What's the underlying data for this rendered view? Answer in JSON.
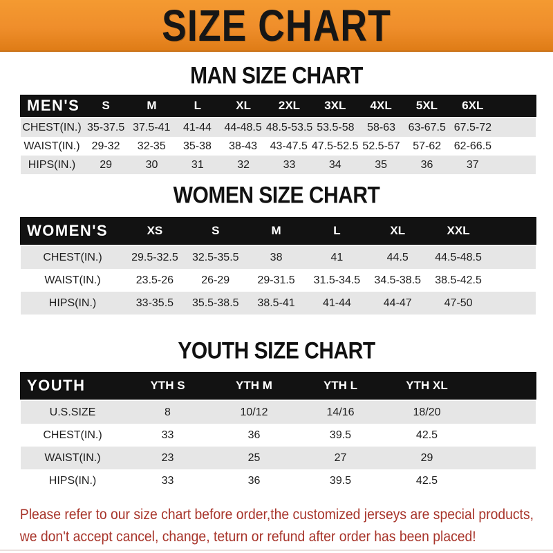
{
  "banner": {
    "title": "SIZE CHART"
  },
  "colors": {
    "banner_bg": "#EF8E2B",
    "banner_hi": "#F49A31",
    "bar_bg": "#121212",
    "bar_text": "#FFFFFF",
    "row_alt": "#E6E6E6",
    "title_text": "#111111",
    "footer_text": "#A8352B"
  },
  "chart_data": [
    {
      "type": "table",
      "title": "MAN SIZE CHART",
      "header_label": "MEN'S",
      "columns": [
        "S",
        "M",
        "L",
        "XL",
        "2XL",
        "3XL",
        "4XL",
        "5XL",
        "6XL"
      ],
      "rows": [
        [
          "CHEST(IN.)",
          "35-37.5",
          "37.5-41",
          "41-44",
          "44-48.5",
          "48.5-53.5",
          "53.5-58",
          "58-63",
          "63-67.5",
          "67.5-72"
        ],
        [
          "WAIST(IN.)",
          "29-32",
          "32-35",
          "35-38",
          "38-43",
          "43-47.5",
          "47.5-52.5",
          "52.5-57",
          "57-62",
          "62-66.5"
        ],
        [
          "HIPS(IN.)",
          "29",
          "30",
          "31",
          "32",
          "33",
          "34",
          "35",
          "36",
          "37"
        ]
      ]
    },
    {
      "type": "table",
      "title": "WOMEN SIZE CHART",
      "header_label": "WOMEN'S",
      "columns": [
        "XS",
        "S",
        "M",
        "L",
        "XL",
        "XXL"
      ],
      "rows": [
        [
          "CHEST(IN.)",
          "29.5-32.5",
          "32.5-35.5",
          "38",
          "41",
          "44.5",
          "44.5-48.5"
        ],
        [
          "WAIST(IN.)",
          "23.5-26",
          "26-29",
          "29-31.5",
          "31.5-34.5",
          "34.5-38.5",
          "38.5-42.5"
        ],
        [
          "HIPS(IN.)",
          "33-35.5",
          "35.5-38.5",
          "38.5-41",
          "41-44",
          "44-47",
          "47-50"
        ]
      ]
    },
    {
      "type": "table",
      "title": "YOUTH SIZE CHART",
      "header_label": "YOUTH",
      "columns": [
        "YTH S",
        "YTH M",
        "YTH L",
        "YTH XL"
      ],
      "rows": [
        [
          "U.S.SIZE",
          "8",
          "10/12",
          "14/16",
          "18/20"
        ],
        [
          "CHEST(IN.)",
          "33",
          "36",
          "39.5",
          "42.5"
        ],
        [
          "WAIST(IN.)",
          "23",
          "25",
          "27",
          "29"
        ],
        [
          "HIPS(IN.)",
          "33",
          "36",
          "39.5",
          "42.5"
        ]
      ]
    }
  ],
  "footer": {
    "line1": "Please refer to our size chart before order,the customized jerseys are special products,",
    "line2": "we don't accept cancel, change, teturn or refund after order has been placed!"
  }
}
